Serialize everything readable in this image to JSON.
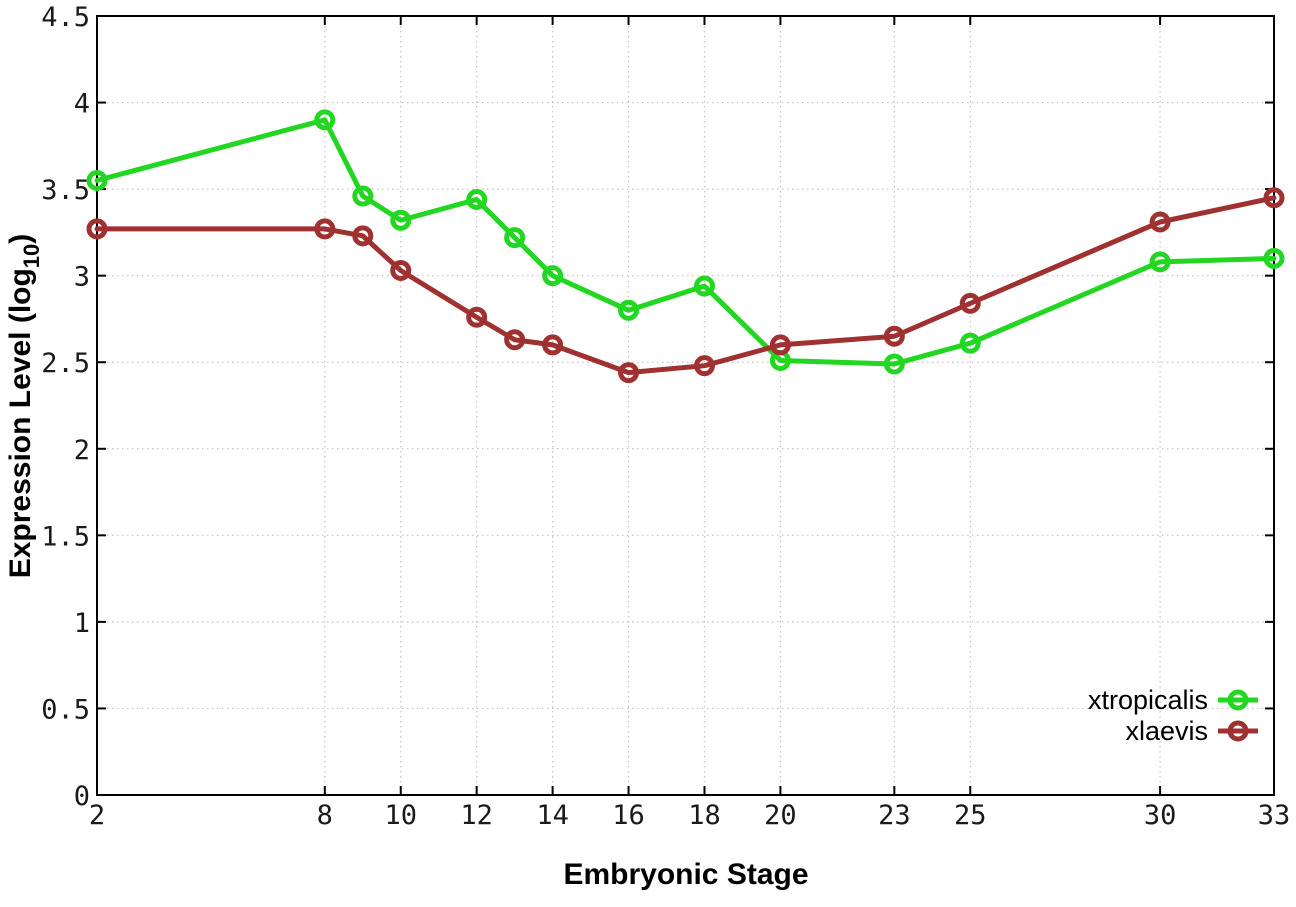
{
  "chart_data": {
    "type": "line",
    "title": "",
    "xlabel": "Embryonic Stage",
    "ylabel": {
      "pre": "Expression Level (log",
      "sub": "10",
      "post": ")"
    },
    "xlim": [
      2,
      33
    ],
    "ylim": [
      0,
      4.5
    ],
    "x_ticks": [
      2,
      8,
      10,
      12,
      14,
      16,
      18,
      20,
      23,
      25,
      30,
      33
    ],
    "y_ticks": [
      0,
      0.5,
      1,
      1.5,
      2,
      2.5,
      3,
      3.5,
      4,
      4.5
    ],
    "grid": true,
    "legend_position": "bottom-right",
    "x": [
      2,
      8,
      9,
      10,
      12,
      13,
      14,
      16,
      18,
      20,
      23,
      25,
      30,
      33
    ],
    "series": [
      {
        "name": "xtropicalis",
        "color": "#22d622",
        "values": [
          3.55,
          3.9,
          3.46,
          3.32,
          3.44,
          3.22,
          3.0,
          2.8,
          2.94,
          2.51,
          2.49,
          2.61,
          3.08,
          3.1
        ]
      },
      {
        "name": "xlaevis",
        "color": "#a03131",
        "values": [
          3.27,
          3.27,
          3.23,
          3.03,
          2.76,
          2.63,
          2.6,
          2.44,
          2.48,
          2.6,
          2.65,
          2.84,
          3.31,
          3.45
        ]
      }
    ],
    "styles": {
      "grid_color": "#c4c4c4",
      "axis_color": "#000000",
      "tick_label_color": "#1a1a1a"
    }
  }
}
